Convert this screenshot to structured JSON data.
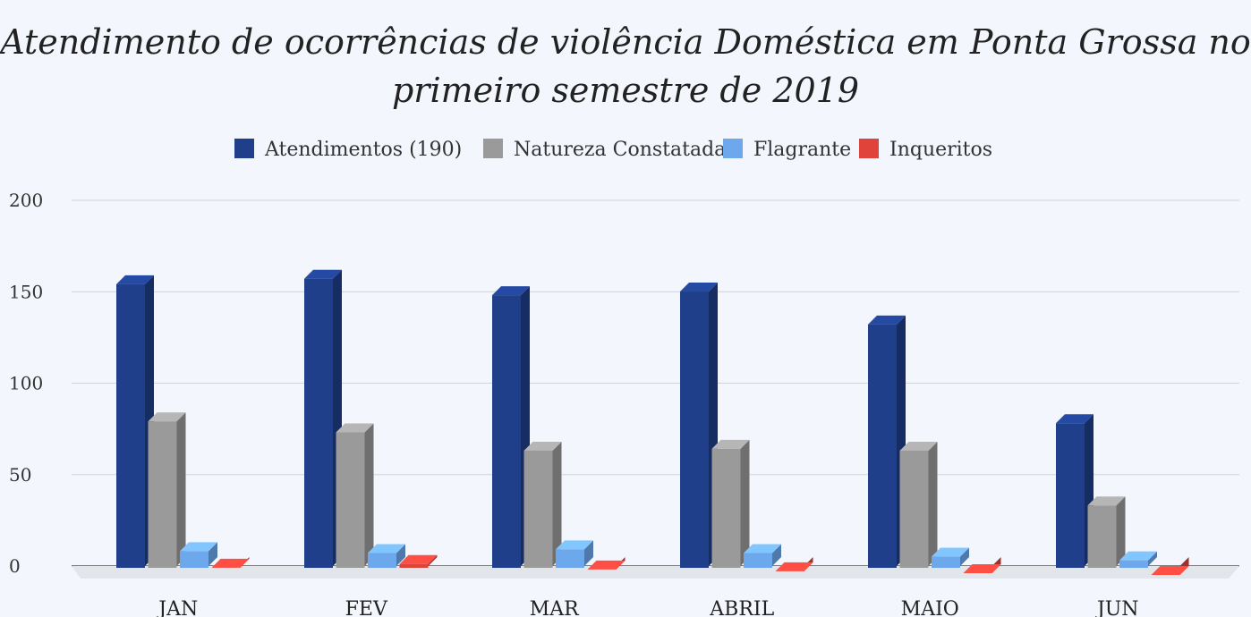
{
  "chart_data": {
    "type": "bar",
    "title_line1": "Atendimento de ocorrências de violência Doméstica em Ponta Grossa no",
    "title_line2": "primeiro semestre de 2019",
    "categories": [
      "JAN",
      "FEV",
      "MAR",
      "ABRIL",
      "MAIO",
      "JUN"
    ],
    "series": [
      {
        "name": "Atendimentos (190)",
        "color": "#1f3f8a",
        "values": [
          159,
          162,
          153,
          155,
          137,
          83
        ]
      },
      {
        "name": "Natureza Constatada",
        "color": "#9a9a9a",
        "values": [
          84,
          78,
          68,
          69,
          68,
          38
        ]
      },
      {
        "name": "Flagrante",
        "color": "#6ea8ec",
        "values": [
          13,
          12,
          14,
          12,
          10,
          8
        ]
      },
      {
        "name": "Inqueritos",
        "color": "#e0433a",
        "values": [
          4,
          6,
          3,
          2,
          1,
          0
        ]
      }
    ],
    "ylim": [
      0,
      200
    ],
    "yticks": [
      0,
      50,
      100,
      150,
      200
    ],
    "grid": true,
    "legend_position": "top",
    "three_d": true
  }
}
